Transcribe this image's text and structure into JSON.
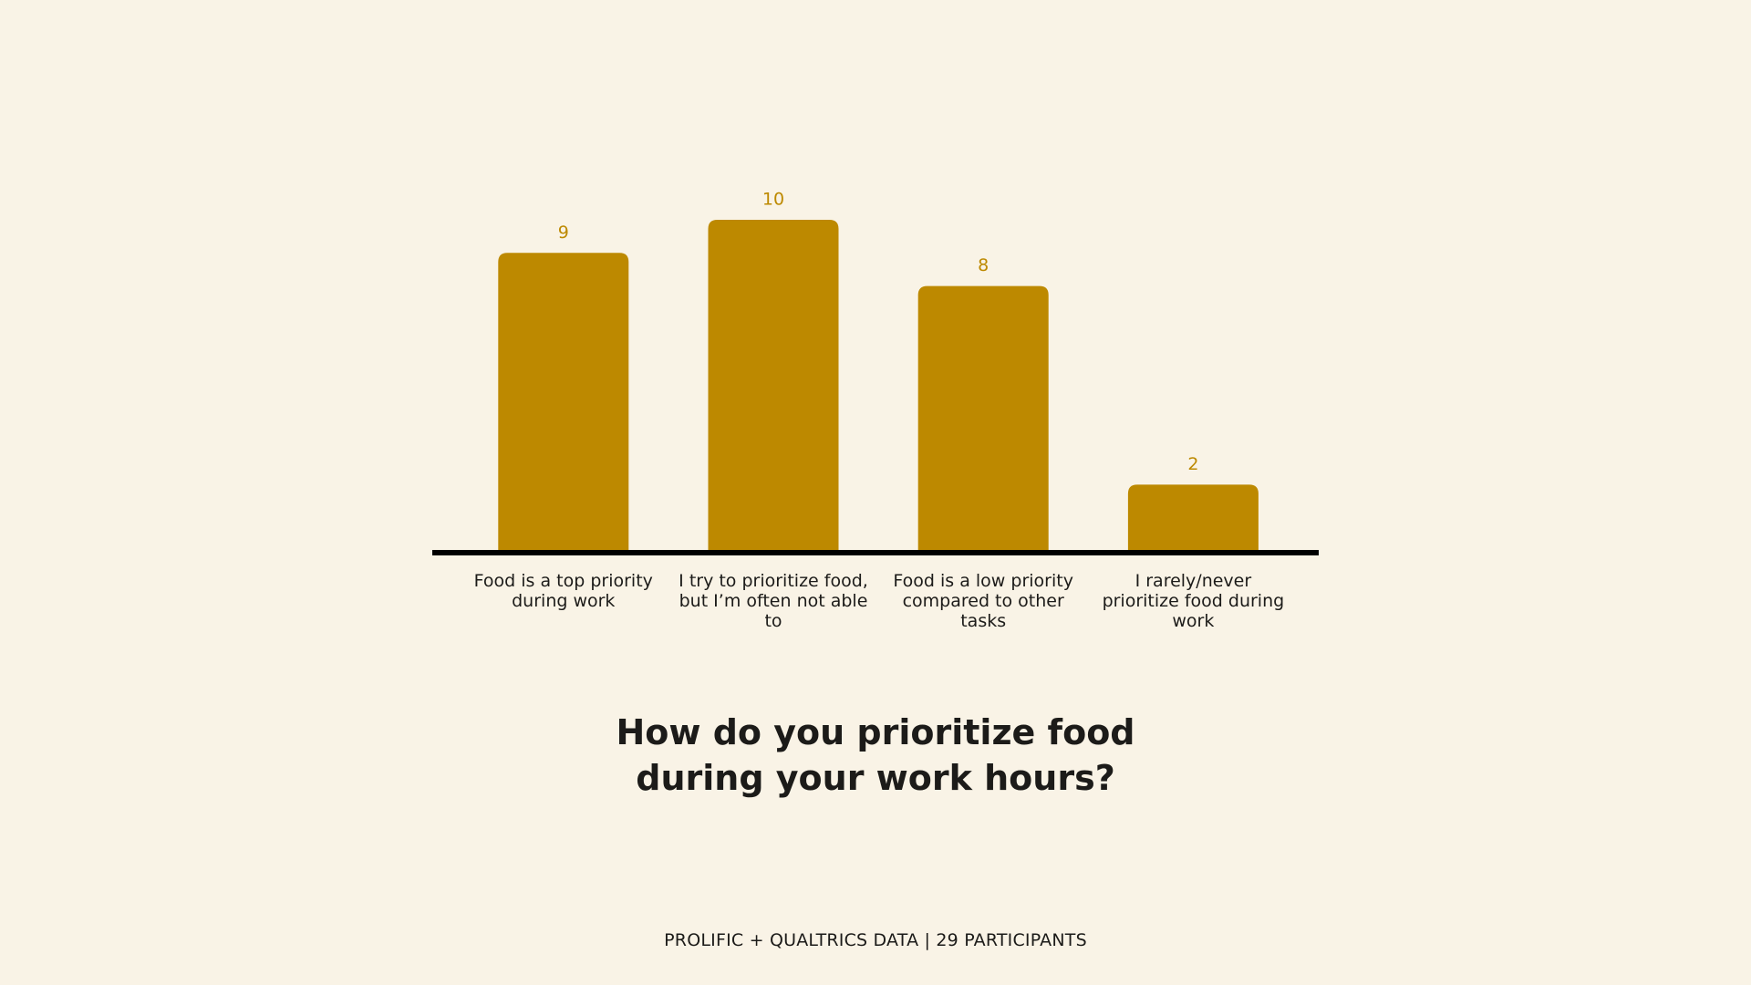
{
  "chart_data": {
    "type": "bar",
    "title": "How do you prioritize food during your work hours?",
    "categories": [
      "Food is a top priority during work",
      "I try to prioritize food, but I’m often not able to",
      "Food is a low priority compared to other tasks",
      "I rarely/never prioritize food during work"
    ],
    "values": [
      9,
      10,
      8,
      2
    ],
    "color": "#bd8900",
    "note": "PROLIFIC + QUALTRICS DATA | 29 PARTICIPANTS"
  }
}
